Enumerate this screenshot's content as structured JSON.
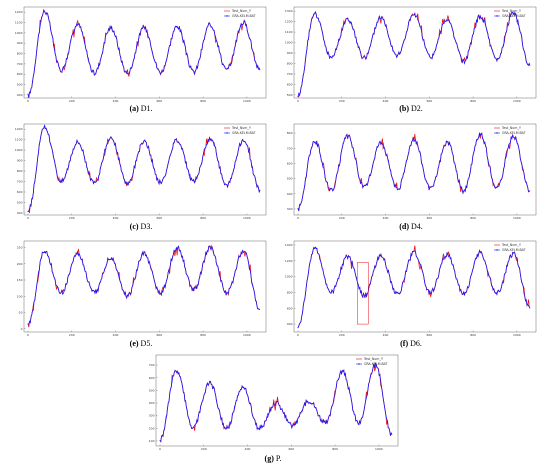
{
  "colors": {
    "test_series": "#e8141c",
    "model_series": "#1a1aff",
    "highlight_box": "#e8141c"
  },
  "chart_data": [
    {
      "id": "D1",
      "type": "line",
      "caption": {
        "letter": "(a)",
        "text": "D1."
      },
      "x_ticks": [
        "0",
        "200",
        "400",
        "600",
        "800",
        "1000"
      ],
      "y_ticks": [
        "1200",
        "1100",
        "1000",
        "900",
        "800",
        "700",
        "600",
        "500",
        "400"
      ],
      "ylim": [
        370,
        1250
      ],
      "legend": {
        "position": "top-right",
        "test_label": "Test_Num_Y",
        "model_label": "GRA-KELM-BAT"
      },
      "series": [
        {
          "values": [
            390,
            1210,
            640,
            1080,
            610,
            1050,
            610,
            1050,
            620,
            1060,
            620,
            1080,
            640,
            1100,
            640
          ]
        }
      ]
    },
    {
      "id": "D2",
      "type": "line",
      "caption": {
        "letter": "(b)",
        "text": "D2."
      },
      "x_ticks": [
        "0",
        "200",
        "400",
        "600",
        "800",
        "1000"
      ],
      "y_ticks": [
        "1300",
        "1200",
        "1100",
        "1000",
        "900",
        "800",
        "700",
        "600",
        "500"
      ],
      "ylim": [
        470,
        1340
      ],
      "legend": {
        "position": "top-right",
        "test_label": "Test_Num_Y",
        "model_label": "GRA-KELM-BAT"
      },
      "series": [
        {
          "values": [
            500,
            1280,
            860,
            1220,
            850,
            1240,
            880,
            1270,
            860,
            1220,
            820,
            1250,
            840,
            1280,
            780
          ]
        }
      ]
    },
    {
      "id": "D3",
      "type": "line",
      "caption": {
        "letter": "(c)",
        "text": "D3."
      },
      "x_ticks": [
        "0",
        "200",
        "400",
        "600",
        "800",
        "1000"
      ],
      "y_ticks": [
        "1200",
        "1100",
        "1000",
        "900",
        "800",
        "700",
        "600",
        "500",
        "400"
      ],
      "ylim": [
        380,
        1250
      ],
      "legend": {
        "position": "top-right",
        "test_label": "Test_Num_Y",
        "model_label": "GRA-KELM-BAT"
      },
      "series": [
        {
          "values": [
            420,
            1220,
            700,
            1080,
            680,
            1120,
            680,
            1080,
            690,
            1100,
            700,
            1110,
            660,
            1100,
            620
          ]
        }
      ]
    },
    {
      "id": "D4",
      "type": "line",
      "caption": {
        "letter": "(d)",
        "text": "D4."
      },
      "x_ticks": [
        "0",
        "200",
        "400",
        "600",
        "800",
        "1000"
      ],
      "y_ticks": [
        "800",
        "700",
        "600",
        "500",
        "400",
        "300"
      ],
      "ylim": [
        260,
        860
      ],
      "legend": {
        "position": "top-right",
        "test_label": "Test_Num_Y",
        "model_label": "GRA-KELM-BAT"
      },
      "series": [
        {
          "values": [
            300,
            750,
            420,
            780,
            440,
            740,
            430,
            760,
            430,
            740,
            420,
            790,
            440,
            780,
            420
          ]
        }
      ]
    },
    {
      "id": "D5",
      "type": "line",
      "caption": {
        "letter": "(e)",
        "text": "D5."
      },
      "x_ticks": [
        "0",
        "200",
        "400",
        "600",
        "800",
        "1000"
      ],
      "y_ticks": [
        "250",
        "200",
        "150",
        "100",
        "50",
        "0"
      ],
      "ylim": [
        -10,
        270
      ],
      "legend": {
        "position": "none"
      },
      "series": [
        {
          "values": [
            10,
            240,
            110,
            230,
            110,
            220,
            100,
            230,
            110,
            250,
            120,
            250,
            110,
            240,
            60
          ]
        }
      ]
    },
    {
      "id": "D6",
      "type": "line",
      "caption": {
        "letter": "(f)",
        "text": "D6."
      },
      "x_ticks": [
        "0",
        "200",
        "400",
        "600",
        "800",
        "1000"
      ],
      "y_ticks": [
        "1400",
        "1200",
        "1000",
        "800",
        "600",
        "400"
      ],
      "ylim": [
        300,
        1450
      ],
      "legend": {
        "position": "top-right",
        "test_label": "Test_Num_Y",
        "model_label": "GRA-KELM-BAT"
      },
      "series": [
        {
          "values": [
            380,
            1360,
            800,
            1250,
            760,
            1260,
            780,
            1300,
            800,
            1280,
            790,
            1300,
            800,
            1290,
            600
          ]
        }
      ]
    },
    {
      "id": "P",
      "type": "line",
      "caption": {
        "letter": "(g)",
        "text": "P."
      },
      "x_ticks": [
        "0",
        "200",
        "400",
        "600",
        "800",
        "1000"
      ],
      "y_ticks": [
        "700",
        "600",
        "500",
        "400",
        "300",
        "200",
        "100"
      ],
      "ylim": [
        60,
        780
      ],
      "legend": {
        "position": "top-right",
        "test_label": "Test_Num_Y",
        "model_label": "GRA-KELM-BAT"
      },
      "series": [
        {
          "values": [
            110,
            660,
            210,
            560,
            200,
            520,
            200,
            400,
            220,
            420,
            240,
            650,
            240,
            700,
            150
          ]
        }
      ]
    }
  ]
}
